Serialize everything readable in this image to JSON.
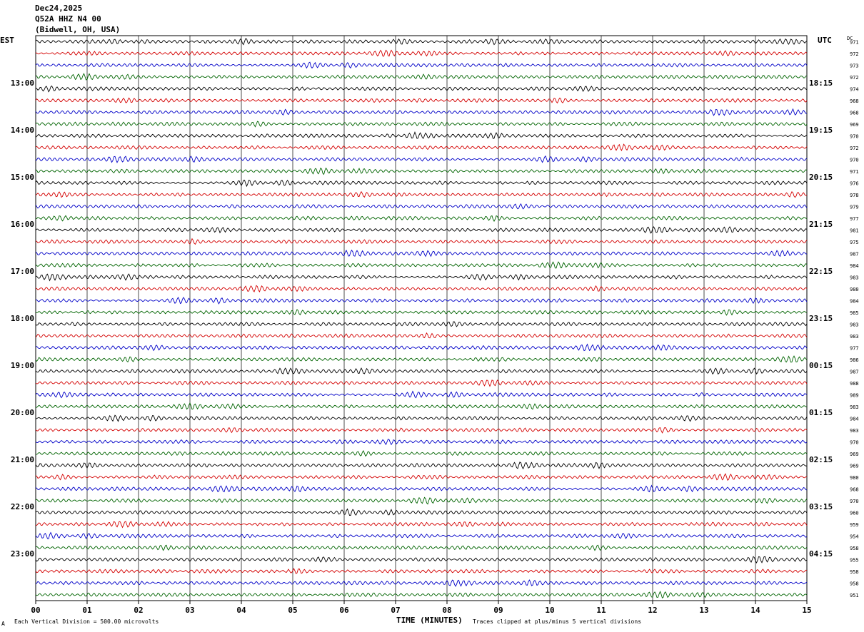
{
  "header": {
    "date": "Dec24,2025",
    "station": "Q52A HHZ N4 00",
    "location": "(Bidwell, OH, USA)"
  },
  "timezones": {
    "left": "EST",
    "right": "UTC"
  },
  "dc_header": "DC",
  "footer": {
    "scale_note": "Each Vertical Division =  500.00 microvolts",
    "xlabel": "TIME (MINUTES)",
    "clip_note": "Traces clipped at plus/minus 5 vertical divisions",
    "corner_mark": "A"
  },
  "colors": {
    "trace_cycle": [
      "#000000",
      "#d40000",
      "#0000c8",
      "#006400"
    ],
    "grid": "#000000",
    "background": "#ffffff"
  },
  "chart_data": {
    "type": "line",
    "title": "",
    "xlabel": "TIME (MINUTES)",
    "ylabel": "",
    "x_ticks": [
      "00",
      "01",
      "02",
      "03",
      "04",
      "05",
      "06",
      "07",
      "08",
      "09",
      "10",
      "11",
      "12",
      "13",
      "14",
      "15"
    ],
    "xlim": [
      0,
      15
    ],
    "minutes_per_trace": 15,
    "trace_count": 48,
    "left_hour_labels": [
      {
        "trace": 4,
        "label": "13:00"
      },
      {
        "trace": 8,
        "label": "14:00"
      },
      {
        "trace": 12,
        "label": "15:00"
      },
      {
        "trace": 16,
        "label": "16:00"
      },
      {
        "trace": 20,
        "label": "17:00"
      },
      {
        "trace": 24,
        "label": "18:00"
      },
      {
        "trace": 28,
        "label": "19:00"
      },
      {
        "trace": 32,
        "label": "20:00"
      },
      {
        "trace": 36,
        "label": "21:00"
      },
      {
        "trace": 40,
        "label": "22:00"
      },
      {
        "trace": 44,
        "label": "23:00"
      }
    ],
    "right_hour_labels": [
      {
        "trace": 4,
        "label": "18:15"
      },
      {
        "trace": 8,
        "label": "19:15"
      },
      {
        "trace": 12,
        "label": "20:15"
      },
      {
        "trace": 16,
        "label": "21:15"
      },
      {
        "trace": 20,
        "label": "22:15"
      },
      {
        "trace": 24,
        "label": "23:15"
      },
      {
        "trace": 28,
        "label": "00:15"
      },
      {
        "trace": 32,
        "label": "01:15"
      },
      {
        "trace": 36,
        "label": "02:15"
      },
      {
        "trace": 40,
        "label": "03:15"
      },
      {
        "trace": 44,
        "label": "04:15"
      }
    ],
    "dc_values": [
      "971",
      "972",
      "973",
      "972",
      "974",
      "968",
      "968",
      "969",
      "970",
      "972",
      "970",
      "971",
      "976",
      "978",
      "979",
      "977",
      "981",
      "975",
      "987",
      "984",
      "983",
      "980",
      "984",
      "985",
      "983",
      "983",
      "977",
      "986",
      "987",
      "988",
      "989",
      "983",
      "984",
      "983",
      "970",
      "969",
      "969",
      "980",
      "968",
      "970",
      "960",
      "959",
      "954",
      "958",
      "955",
      "958",
      "958",
      "951"
    ]
  }
}
